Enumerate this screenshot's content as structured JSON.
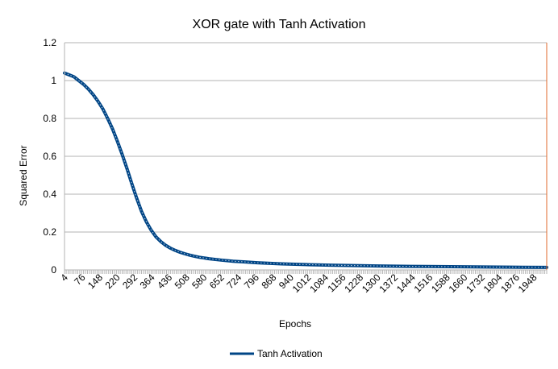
{
  "chart_data": {
    "type": "line",
    "title": "XOR gate with Tanh Activation",
    "xlabel": "Epochs",
    "ylabel": "Squared Error",
    "ylim": [
      0,
      1.2
    ],
    "yticks": [
      "0",
      "0.2",
      "0.4",
      "0.6",
      "0.8",
      "1",
      "1.2"
    ],
    "xlim": [
      1,
      2000
    ],
    "xticks": [
      "4",
      "76",
      "148",
      "220",
      "292",
      "364",
      "436",
      "508",
      "580",
      "652",
      "724",
      "796",
      "868",
      "940",
      "1012",
      "1084",
      "1156",
      "1228",
      "1300",
      "1372",
      "1444",
      "1516",
      "1588",
      "1660",
      "1732",
      "1804",
      "1876",
      "1948"
    ],
    "grid": true,
    "legend_position": "bottom",
    "series": [
      {
        "name": "Tanh Activation",
        "color": "#004586",
        "x": [
          1,
          20,
          40,
          60,
          80,
          100,
          120,
          140,
          160,
          180,
          200,
          220,
          240,
          260,
          280,
          300,
          320,
          340,
          360,
          380,
          400,
          420,
          440,
          460,
          480,
          500,
          520,
          540,
          560,
          580,
          600,
          650,
          700,
          750,
          800,
          900,
          1000,
          1100,
          1200,
          1300,
          1400,
          1500,
          1600,
          1700,
          1800,
          1900,
          2000
        ],
        "y": [
          1.04,
          1.03,
          1.02,
          1.0,
          0.98,
          0.955,
          0.925,
          0.89,
          0.85,
          0.8,
          0.745,
          0.68,
          0.61,
          0.535,
          0.455,
          0.38,
          0.31,
          0.255,
          0.21,
          0.175,
          0.15,
          0.13,
          0.115,
          0.103,
          0.093,
          0.085,
          0.078,
          0.072,
          0.067,
          0.063,
          0.059,
          0.052,
          0.046,
          0.042,
          0.038,
          0.032,
          0.028,
          0.025,
          0.023,
          0.021,
          0.019,
          0.018,
          0.017,
          0.016,
          0.015,
          0.014,
          0.013
        ]
      }
    ]
  }
}
